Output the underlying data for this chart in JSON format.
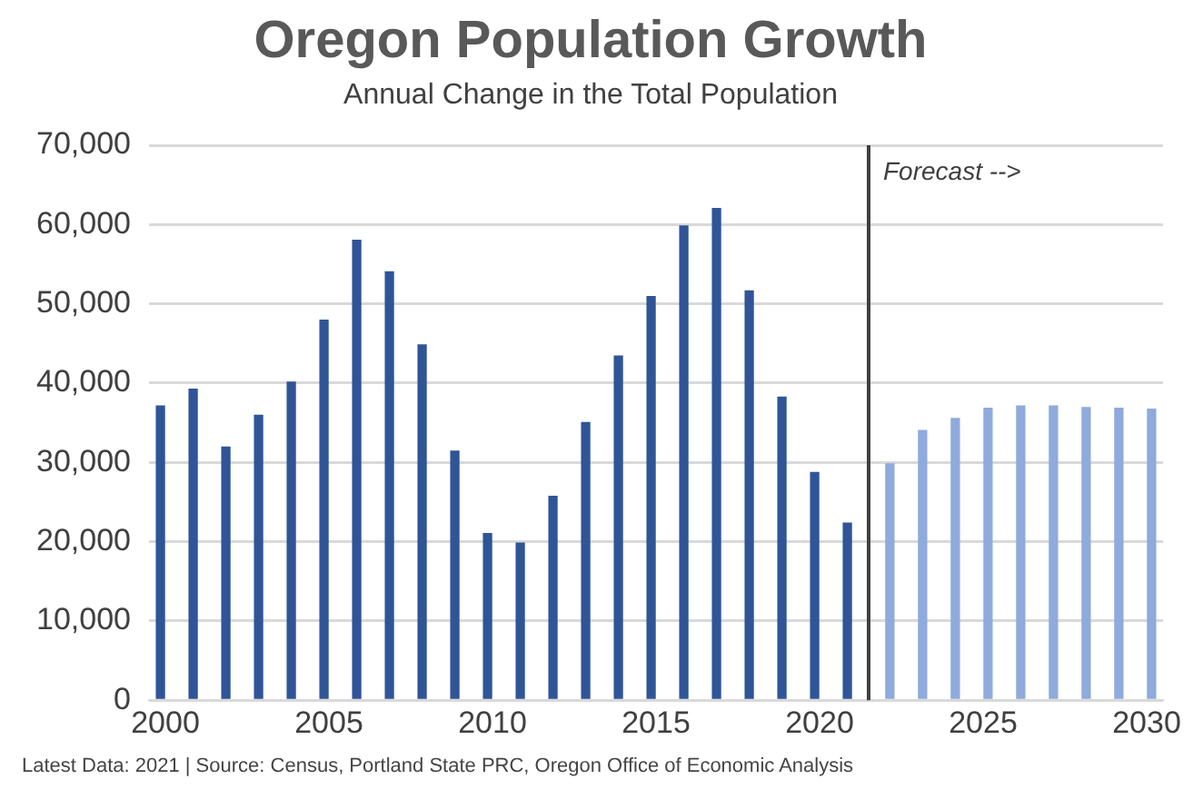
{
  "chart_data": {
    "type": "bar",
    "title": "Oregon Population Growth",
    "subtitle": "Annual Change in the Total Population",
    "series": [
      {
        "color": "#2f5597",
        "x": [
          2000,
          2001,
          2002,
          2003,
          2004,
          2005,
          2006,
          2007,
          2008,
          2009,
          2010,
          2011,
          2012,
          2013,
          2014,
          2015,
          2016,
          2017,
          2018,
          2019,
          2020,
          2021
        ],
        "values": [
          37200,
          39300,
          32000,
          36000,
          40200,
          48000,
          58100,
          54100,
          44900,
          31500,
          21100,
          19900,
          25800,
          35100,
          43500,
          51000,
          59900,
          62100,
          51700,
          38300,
          28800,
          22400
        ]
      },
      {
        "color": "#8faadc",
        "x": [
          2022,
          2023,
          2024,
          2025,
          2026,
          2027,
          2028,
          2029,
          2030
        ],
        "values": [
          29900,
          34100,
          35600,
          36900,
          37200,
          37200,
          37000,
          36900,
          36800
        ]
      }
    ],
    "xlim": [
      1999.5,
      2030.5
    ],
    "xticks": [
      2000,
      2005,
      2010,
      2015,
      2020,
      2025,
      2030
    ],
    "ylim": [
      0,
      70000
    ],
    "yticks": [
      {
        "value": 0,
        "label": "0"
      },
      {
        "value": 10000,
        "label": "10,000"
      },
      {
        "value": 20000,
        "label": "20,000"
      },
      {
        "value": 30000,
        "label": "30,000"
      },
      {
        "value": 40000,
        "label": "40,000"
      },
      {
        "value": 50000,
        "label": "50,000"
      },
      {
        "value": 60000,
        "label": "60,000"
      },
      {
        "value": 70000,
        "label": "70,000"
      }
    ],
    "grid": "y",
    "ref_lines": [
      {
        "axis": "x",
        "value": 2021.5,
        "label": "Forecast -->",
        "color": "#404040"
      }
    ],
    "annotations": [
      "Latest Data: 2021  |  Source: Census, Portland State PRC, Oregon Office of Economic Analysis"
    ]
  }
}
